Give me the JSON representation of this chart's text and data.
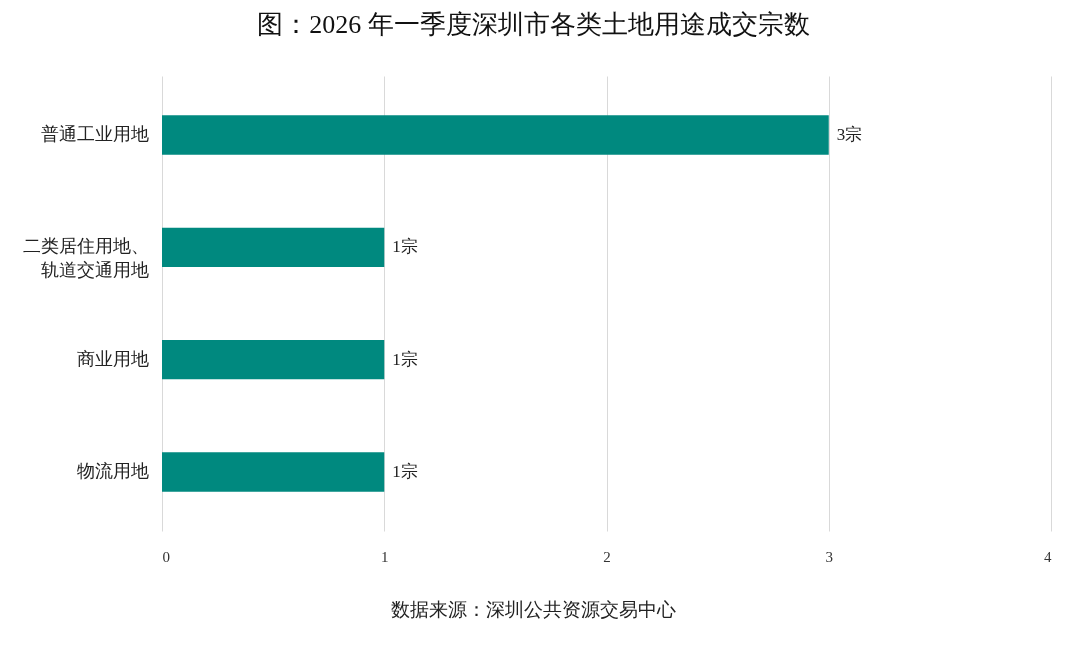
{
  "chart_data": {
    "type": "bar",
    "orientation": "horizontal",
    "title": "图：2026 年一季度深圳市各类土地用途成交宗数",
    "categories": [
      "普通工业用地",
      "二类居住用地、轨道交通用地",
      "商业用地",
      "物流用地"
    ],
    "values": [
      3,
      1,
      1,
      1
    ],
    "value_labels": [
      "3宗",
      "1宗",
      "1宗",
      "1宗"
    ],
    "color": "#00897f",
    "xlim": [
      0,
      4
    ],
    "xticks": [
      0,
      1,
      2,
      3,
      4
    ],
    "grid": "x",
    "annotations": [
      "数据来源：深圳公共资源交易中心"
    ]
  }
}
